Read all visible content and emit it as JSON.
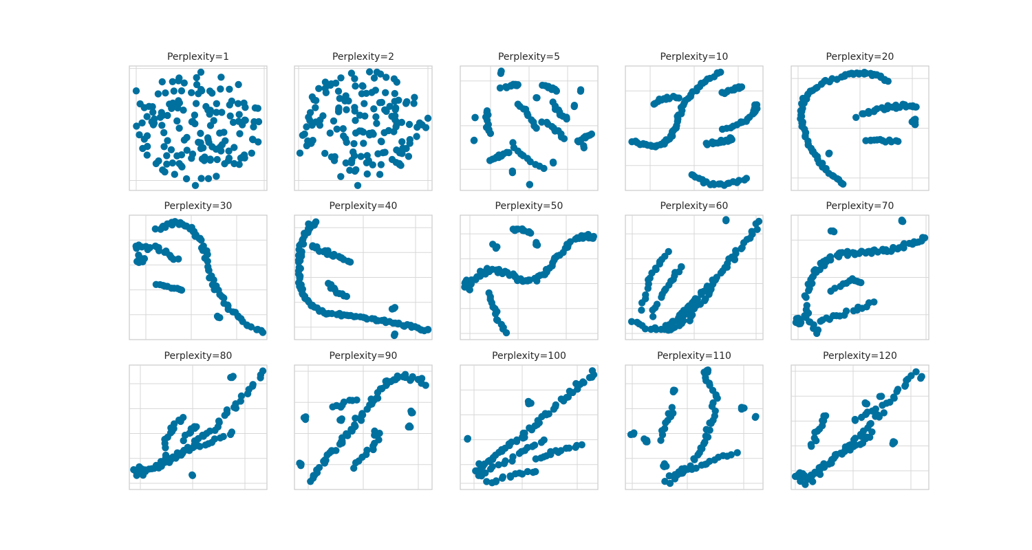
{
  "chart_data": [
    {
      "type": "scatter",
      "title": "Perplexity=1",
      "marker_color": "#00709f",
      "grid": true,
      "shape": "random-cloud"
    },
    {
      "type": "scatter",
      "title": "Perplexity=2",
      "marker_color": "#00709f",
      "grid": true,
      "shape": "random-cloud"
    },
    {
      "type": "scatter",
      "title": "Perplexity=5",
      "marker_color": "#00709f",
      "grid": true,
      "shape": "short-fragments"
    },
    {
      "type": "scatter",
      "title": "Perplexity=10",
      "marker_color": "#00709f",
      "grid": true,
      "shape": "curved-fragments"
    },
    {
      "type": "scatter",
      "title": "Perplexity=20",
      "marker_color": "#00709f",
      "grid": true,
      "shape": "hook-with-branches"
    },
    {
      "type": "scatter",
      "title": "Perplexity=30",
      "marker_color": "#00709f",
      "grid": true,
      "shape": "arc-descending"
    },
    {
      "type": "scatter",
      "title": "Perplexity=40",
      "marker_color": "#00709f",
      "grid": true,
      "shape": "l-curve"
    },
    {
      "type": "scatter",
      "title": "Perplexity=50",
      "marker_color": "#00709f",
      "grid": true,
      "shape": "wave-rising"
    },
    {
      "type": "scatter",
      "title": "Perplexity=60",
      "marker_color": "#00709f",
      "grid": true,
      "shape": "diagonal-with-branches"
    },
    {
      "type": "scatter",
      "title": "Perplexity=70",
      "marker_color": "#00709f",
      "grid": true,
      "shape": "s-curve-with-loop"
    },
    {
      "type": "scatter",
      "title": "Perplexity=80",
      "marker_color": "#00709f",
      "grid": true,
      "shape": "diagonal-with-branches"
    },
    {
      "type": "scatter",
      "title": "Perplexity=90",
      "marker_color": "#00709f",
      "grid": true,
      "shape": "diagonal-with-branches"
    },
    {
      "type": "scatter",
      "title": "Perplexity=100",
      "marker_color": "#00709f",
      "grid": true,
      "shape": "diagonal-with-branches"
    },
    {
      "type": "scatter",
      "title": "Perplexity=110",
      "marker_color": "#00709f",
      "grid": true,
      "shape": "diagonal-with-loop"
    },
    {
      "type": "scatter",
      "title": "Perplexity=120",
      "marker_color": "#00709f",
      "grid": true,
      "shape": "diagonal-with-branches"
    }
  ]
}
